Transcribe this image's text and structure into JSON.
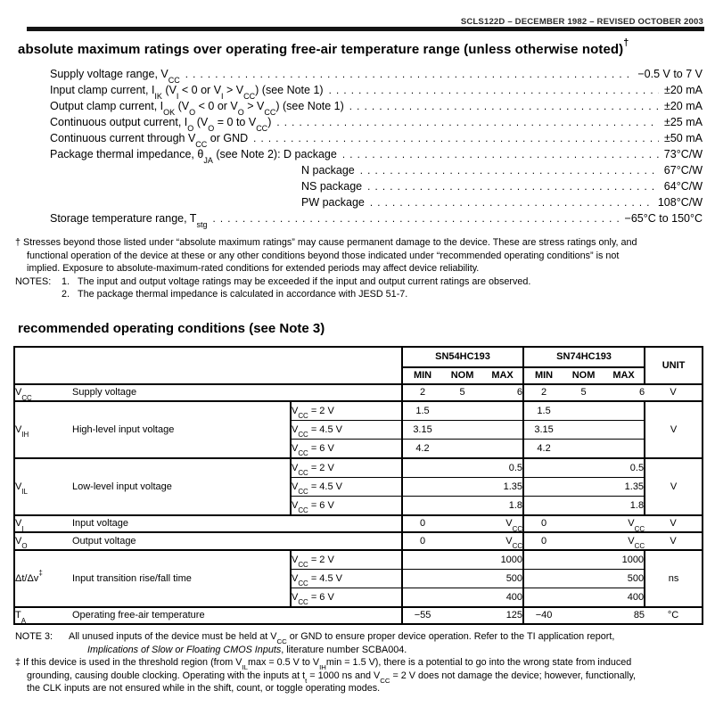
{
  "doc_header": {
    "revision_line": "SCLS122D – DECEMBER 1982 – REVISED OCTOBER 2003"
  },
  "abs_max": {
    "title": "absolute maximum ratings over operating free-air temperature range (unless otherwise noted)^†^",
    "items": [
      {
        "label": "Supply voltage range, V~CC~",
        "value": "−0.5 V to 7 V"
      },
      {
        "label": "Input clamp current, I~IK~ (V~I~ < 0 or V~I~ > V~CC~) (see Note 1)",
        "value": "±20 mA"
      },
      {
        "label": "Output clamp current, I~OK~ (V~O~ < 0 or V~O~ > V~CC~) (see Note 1)",
        "value": "±20 mA"
      },
      {
        "label": "Continuous output current, I~O~ (V~O~ = 0 to V~CC~)",
        "value": "±25 mA"
      },
      {
        "label": "Continuous current through V~CC~ or GND",
        "value": "±50 mA"
      },
      {
        "label": "Package thermal impedance, θ~JA~ (see Note 2): D package",
        "value": "73°C/W"
      },
      {
        "label": "N package",
        "value": "67°C/W"
      },
      {
        "label": "NS package",
        "value": "64°C/W"
      },
      {
        "label": "PW package",
        "value": "108°C/W"
      },
      {
        "label": "Storage temperature range, T~stg~",
        "value": "−65°C to 150°C"
      }
    ],
    "dagger_lines": [
      "† Stresses beyond those listed under “absolute maximum ratings” may cause permanent damage to the device. These are stress ratings only, and",
      "functional operation of the device at these or any other conditions beyond those indicated under “recommended operating conditions” is not",
      "implied. Exposure to absolute-maximum-rated conditions for extended periods may affect device reliability."
    ],
    "notes_label": "NOTES:",
    "notes": [
      {
        "num": "1.",
        "text": "The input and output voltage ratings may be exceeded if the input and output current ratings are observed."
      },
      {
        "num": "2.",
        "text": "The package thermal impedance is calculated in accordance with JESD 51-7."
      }
    ]
  },
  "rec_op": {
    "title": "recommended operating conditions (see Note 3)",
    "table": {
      "h54": "SN54HC193",
      "h74": "SN74HC193",
      "hunit": "UNIT",
      "sub": [
        "MIN",
        "NOM",
        "MAX",
        "MIN",
        "NOM",
        "MAX"
      ],
      "vcc": {
        "sym": "V~CC~",
        "param": "Supply voltage",
        "c": [
          "2",
          "5",
          "6",
          "2",
          "5",
          "6"
        ],
        "unit": "V"
      },
      "vih": {
        "sym": "V~IH~",
        "param": "High-level input voltage",
        "unit": "V",
        "rows": [
          {
            "cond": "V~CC~ = 2 V",
            "c": [
              "1.5",
              "",
              "",
              "1.5",
              "",
              ""
            ]
          },
          {
            "cond": "V~CC~ = 4.5 V",
            "c": [
              "3.15",
              "",
              "",
              "3.15",
              "",
              ""
            ]
          },
          {
            "cond": "V~CC~ = 6 V",
            "c": [
              "4.2",
              "",
              "",
              "4.2",
              "",
              ""
            ]
          }
        ]
      },
      "vil": {
        "sym": "V~IL~",
        "param": "Low-level input voltage",
        "unit": "V",
        "rows": [
          {
            "cond": "V~CC~ = 2 V",
            "c": [
              "",
              "",
              "0.5",
              "",
              "",
              "0.5"
            ]
          },
          {
            "cond": "V~CC~ = 4.5 V",
            "c": [
              "",
              "",
              "1.35",
              "",
              "",
              "1.35"
            ]
          },
          {
            "cond": "V~CC~ = 6 V",
            "c": [
              "",
              "",
              "1.8",
              "",
              "",
              "1.8"
            ]
          }
        ]
      },
      "vi": {
        "sym": "V~I~",
        "param": "Input voltage",
        "c": [
          "0",
          "",
          "V~CC~",
          "0",
          "",
          "V~CC~"
        ],
        "unit": "V"
      },
      "vo": {
        "sym": "V~O~",
        "param": "Output voltage",
        "c": [
          "0",
          "",
          "V~CC~",
          "0",
          "",
          "V~CC~"
        ],
        "unit": "V"
      },
      "dt": {
        "sym": "Δt/Δv^‡^",
        "param": "Input transition rise/fall time",
        "unit": "ns",
        "rows": [
          {
            "cond": "V~CC~ = 2 V",
            "c": [
              "",
              "",
              "1000",
              "",
              "",
              "1000"
            ]
          },
          {
            "cond": "V~CC~ = 4.5 V",
            "c": [
              "",
              "",
              "500",
              "",
              "",
              "500"
            ]
          },
          {
            "cond": "V~CC~ = 6 V",
            "c": [
              "",
              "",
              "400",
              "",
              "",
              "400"
            ]
          }
        ]
      },
      "ta": {
        "sym": "T~A~",
        "param": "Operating free-air temperature",
        "c": [
          "−55",
          "",
          "125",
          "−40",
          "",
          "85"
        ],
        "unit": "°C"
      }
    },
    "note3_label": "NOTE 3:",
    "note3_line1": "All unused inputs of the device must be held at V~CC~ or GND to ensure proper device operation. Refer to the TI application report,",
    "note3_line2": "*Implications of Slow or Floating CMOS Inputs*, literature number SCBA004.",
    "ddagger_lines": [
      "‡ If this device is used in the threshold region (from V~IL~max = 0.5 V to V~IH~min = 1.5 V), there is a potential to go into the wrong state from induced",
      "grounding, causing double clocking. Operating with the inputs at t~t~ = 1000 ns and V~CC~ = 2 V does not damage the device; however, functionally,",
      "the CLK inputs are not ensured while in the shift, count, or toggle operating modes."
    ]
  }
}
